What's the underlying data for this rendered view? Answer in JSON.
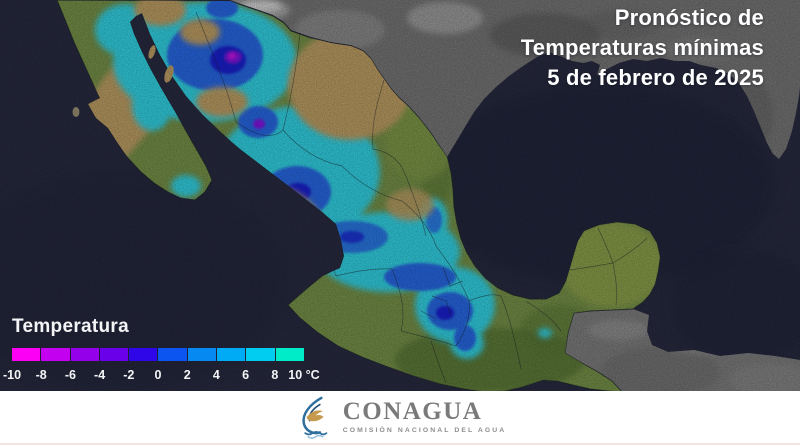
{
  "header": {
    "title_lines": [
      "Pronóstico de",
      "Temperaturas mínimas",
      "5 de febrero de 2025"
    ]
  },
  "legend": {
    "label": "Temperatura",
    "unit": "°C",
    "ticks": [
      "-10",
      "-8",
      "-6",
      "-4",
      "-2",
      "0",
      "2",
      "4",
      "6",
      "8",
      "10 °C"
    ],
    "segments": [
      {
        "from": -10,
        "to": -8,
        "color": "#fb00f4"
      },
      {
        "from": -8,
        "to": -6,
        "color": "#c300f0"
      },
      {
        "from": -6,
        "to": -4,
        "color": "#9500ea"
      },
      {
        "from": -4,
        "to": -2,
        "color": "#6a00ea"
      },
      {
        "from": -2,
        "to": 0,
        "color": "#2f06e8"
      },
      {
        "from": 0,
        "to": 2,
        "color": "#0d55f0"
      },
      {
        "from": 2,
        "to": 4,
        "color": "#068af2"
      },
      {
        "from": 4,
        "to": 6,
        "color": "#00abf5"
      },
      {
        "from": 6,
        "to": 8,
        "color": "#00cdef"
      },
      {
        "from": 8,
        "to": 10,
        "color": "#00ecc8"
      }
    ]
  },
  "map": {
    "palette": {
      "ocean": "#2b2e45",
      "deepsea": "#1f2338",
      "us": "#7d7d7d",
      "neighbor": "#858585",
      "mex": "#7d9a4d",
      "desert": "#c9a86b",
      "cyan": "#35dff2",
      "blue": "#2b6ef2",
      "deepblue": "#1b24dd",
      "purple": "#8a17ef",
      "magenta": "#d313f2",
      "yucatan": "#96aa50",
      "southgreen": "#5d7c38"
    }
  },
  "footer": {
    "brand": "CONAGUA",
    "tagline": "COMISIÓN NACIONAL DEL AGUA"
  }
}
